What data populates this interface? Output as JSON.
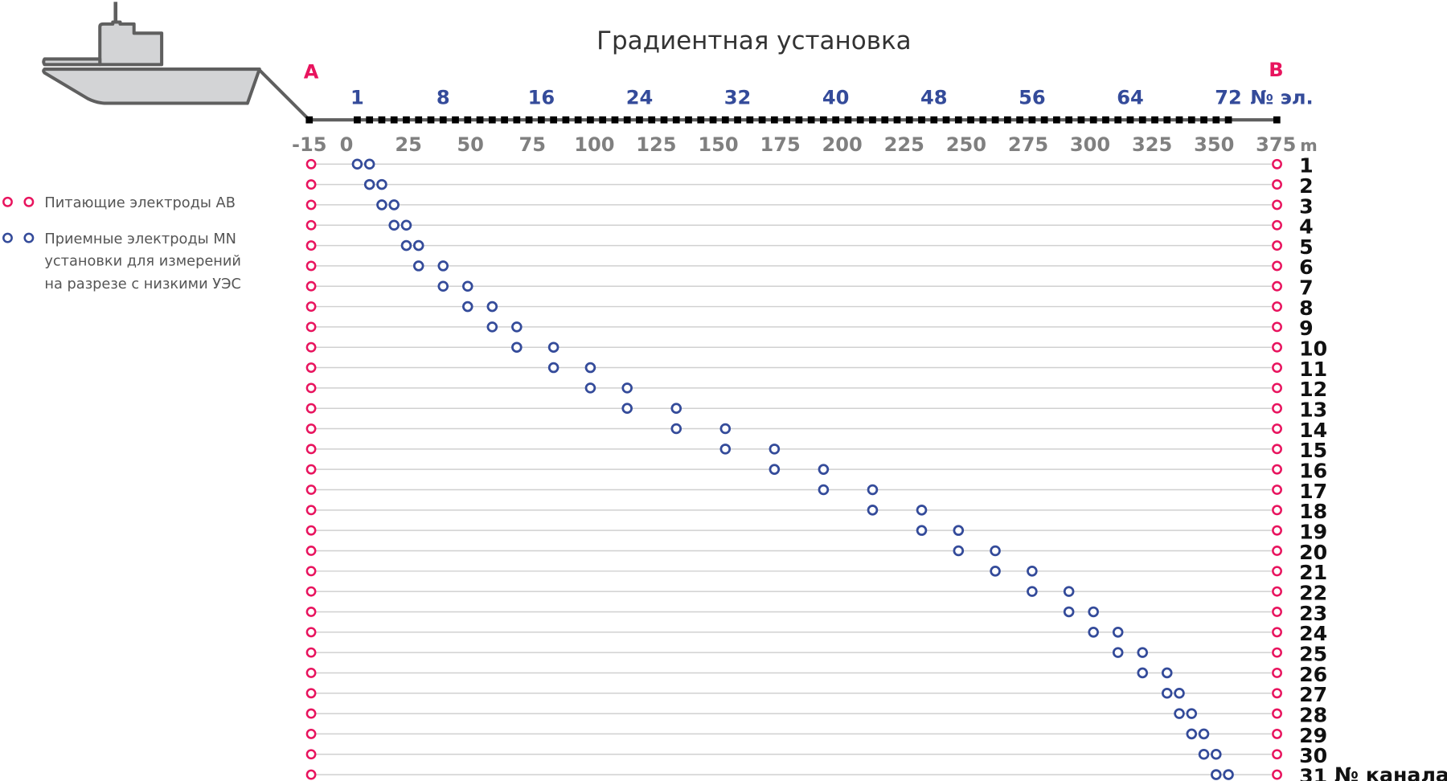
{
  "title": "Градиентная установка",
  "label_a": "A",
  "label_b": "B",
  "electrode_axis": {
    "ticks": [
      "1",
      "8",
      "16",
      "24",
      "32",
      "40",
      "48",
      "56",
      "64",
      "72"
    ],
    "tick_numbers": [
      1,
      8,
      16,
      24,
      32,
      40,
      48,
      56,
      64,
      72
    ],
    "unit_label": "№ эл.",
    "electrode_count": 72
  },
  "meter_axis": {
    "ticks": [
      "-15",
      "0",
      "25",
      "50",
      "75",
      "100",
      "125",
      "150",
      "175",
      "200",
      "225",
      "250",
      "275",
      "300",
      "325",
      "350",
      "375"
    ],
    "unit_label": "m"
  },
  "channel_axis_label": "№ канала",
  "colors": {
    "ab": "#e8145e",
    "mn": "#344b9a",
    "meters": "#808080",
    "line": "#5f5f5f"
  },
  "legend": {
    "ab_label": "Питающие электроды АВ",
    "mn_lines": [
      "Приемные электроды MN",
      "установки для измерений",
      "на разрезе с низкими УЭС"
    ]
  },
  "channels": [
    {
      "n": "1",
      "m": 1,
      "n_el": 2
    },
    {
      "n": "2",
      "m": 2,
      "n_el": 3
    },
    {
      "n": "3",
      "m": 3,
      "n_el": 4
    },
    {
      "n": "4",
      "m": 4,
      "n_el": 5
    },
    {
      "n": "5",
      "m": 5,
      "n_el": 6
    },
    {
      "n": "6",
      "m": 6,
      "n_el": 8
    },
    {
      "n": "7",
      "m": 8,
      "n_el": 10
    },
    {
      "n": "8",
      "m": 10,
      "n_el": 12
    },
    {
      "n": "9",
      "m": 12,
      "n_el": 14
    },
    {
      "n": "10",
      "m": 14,
      "n_el": 17
    },
    {
      "n": "11",
      "m": 17,
      "n_el": 20
    },
    {
      "n": "12",
      "m": 20,
      "n_el": 23
    },
    {
      "n": "13",
      "m": 23,
      "n_el": 27
    },
    {
      "n": "14",
      "m": 27,
      "n_el": 31
    },
    {
      "n": "15",
      "m": 31,
      "n_el": 35
    },
    {
      "n": "16",
      "m": 35,
      "n_el": 39
    },
    {
      "n": "17",
      "m": 39,
      "n_el": 43
    },
    {
      "n": "18",
      "m": 43,
      "n_el": 47
    },
    {
      "n": "19",
      "m": 47,
      "n_el": 50
    },
    {
      "n": "20",
      "m": 50,
      "n_el": 53
    },
    {
      "n": "21",
      "m": 53,
      "n_el": 56
    },
    {
      "n": "22",
      "m": 56,
      "n_el": 59
    },
    {
      "n": "23",
      "m": 59,
      "n_el": 61
    },
    {
      "n": "24",
      "m": 61,
      "n_el": 63
    },
    {
      "n": "25",
      "m": 63,
      "n_el": 65
    },
    {
      "n": "26",
      "m": 65,
      "n_el": 67
    },
    {
      "n": "27",
      "m": 67,
      "n_el": 68
    },
    {
      "n": "28",
      "m": 68,
      "n_el": 69
    },
    {
      "n": "29",
      "m": 69,
      "n_el": 70
    },
    {
      "n": "30",
      "m": 70,
      "n_el": 71
    },
    {
      "n": "31",
      "m": 71,
      "n_el": 72
    }
  ]
}
